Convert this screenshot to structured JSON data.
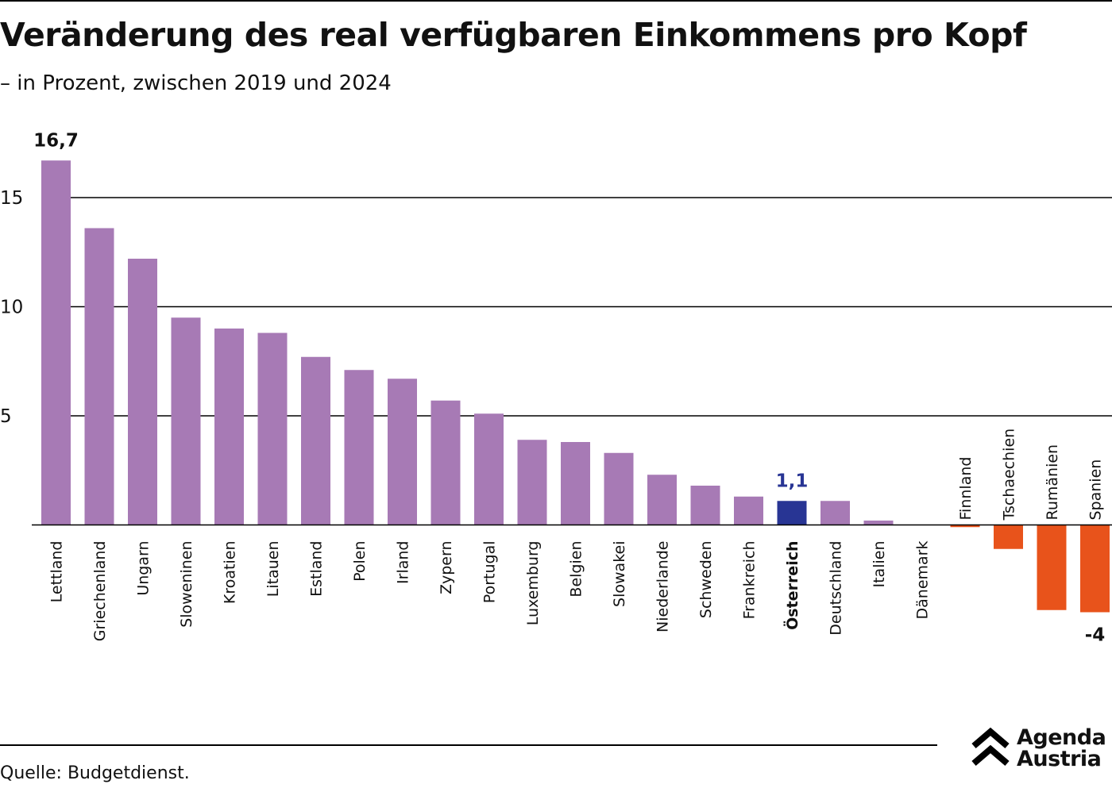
{
  "title": "Veränderung des real verfügbaren Einkommens pro Kopf",
  "subtitle": "– in Prozent, zwischen 2019 und 2024",
  "source": "Quelle: Budgetdienst.",
  "logo": {
    "line1": "Agenda",
    "line2": "Austria",
    "icon": "chevron-up-logo-icon"
  },
  "colors": {
    "positive": "#a77ab5",
    "highlight": "#283594",
    "negative": "#e8531b",
    "axis": "#000000"
  },
  "chart_data": {
    "type": "bar",
    "title": "Veränderung des real verfügbaren Einkommens pro Kopf",
    "subtitle": "– in Prozent, zwischen 2019 und 2024",
    "xlabel": "",
    "ylabel": "",
    "ylim": [
      -4,
      17
    ],
    "yticks": [
      5,
      10,
      15
    ],
    "grid": true,
    "orientation": "vertical",
    "label_rotation": -90,
    "categories": [
      "Lettland",
      "Griechenland",
      "Ungarn",
      "Sloweninen",
      "Kroatien",
      "Litauen",
      "Estland",
      "Polen",
      "Irland",
      "Zypern",
      "Portugal",
      "Luxemburg",
      "Belgien",
      "Slowakei",
      "Niederlande",
      "Schweden",
      "Frankreich",
      "Österreich",
      "Deutschland",
      "Italien",
      "Dänemark",
      "Finnland",
      "Tschaechien",
      "Rumänien",
      "Spanien"
    ],
    "values": [
      16.7,
      13.6,
      12.2,
      9.5,
      9.0,
      8.8,
      7.7,
      7.1,
      6.7,
      5.7,
      5.1,
      3.9,
      3.8,
      3.3,
      2.3,
      1.8,
      1.3,
      1.1,
      1.1,
      0.2,
      0.0,
      -0.1,
      -1.1,
      -3.9,
      -4.0
    ],
    "highlight": [
      "Österreich"
    ],
    "data_labels": [
      {
        "category": "Lettland",
        "text": "16,7"
      },
      {
        "category": "Österreich",
        "text": "1,1"
      },
      {
        "category": "Spanien",
        "text": "-4"
      }
    ]
  }
}
